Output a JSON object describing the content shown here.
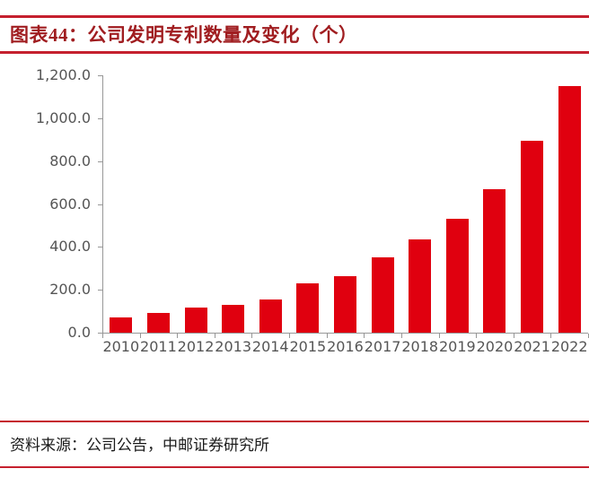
{
  "header": {
    "figure_label": "图表44",
    "title_full": "图表44：公司发明专利数量及变化（个）"
  },
  "footer": {
    "source": "资料来源：公司公告，中邮证券研究所"
  },
  "colors": {
    "bar": "#e0000f",
    "accent_rule": "#c5202e",
    "title_text": "#a01d20",
    "axis": "#979797",
    "axis_label": "#555555"
  },
  "chart_data": {
    "type": "bar",
    "title": "公司发明专利数量及变化（个）",
    "categories": [
      "2010",
      "2011",
      "2012",
      "2013",
      "2014",
      "2015",
      "2016",
      "2017",
      "2018",
      "2019",
      "2020",
      "2021",
      "2022"
    ],
    "values": [
      70,
      90,
      115,
      131,
      153,
      232,
      262,
      351,
      436,
      530,
      671,
      896,
      1150
    ],
    "xlabel": "",
    "ylabel": "",
    "ylim": [
      0,
      1200
    ],
    "ytick_step": 200,
    "ytick_labels": [
      "0.0",
      "200.0",
      "400.0",
      "600.0",
      "800.0",
      "1,000.0",
      "1,200.0"
    ],
    "grid": false,
    "legend": false,
    "bar_color": "#e0000f"
  }
}
